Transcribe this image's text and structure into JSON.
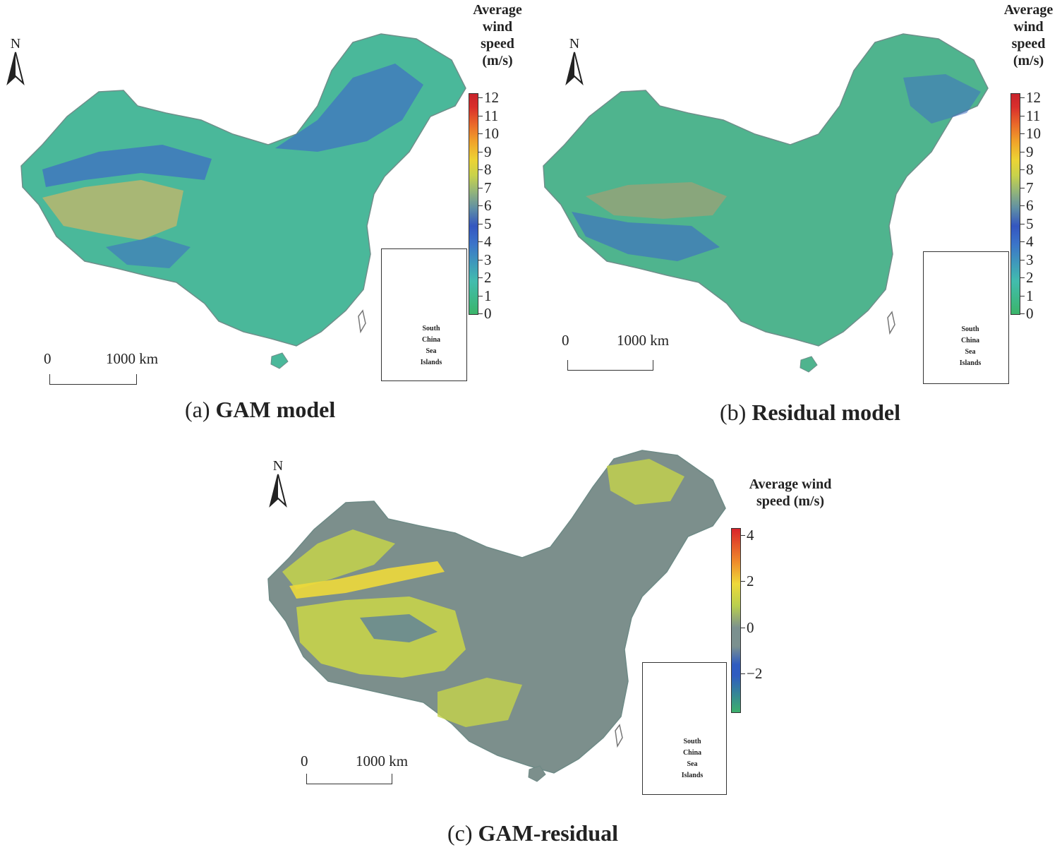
{
  "north_label": "N",
  "panels": [
    {
      "legend_title": [
        "Average",
        "wind",
        "speed",
        "(m/s)"
      ],
      "ticks": [
        "12",
        "11",
        "10",
        "9",
        "8",
        "7",
        "6",
        "5",
        "4",
        "3",
        "2",
        "1",
        "0"
      ],
      "tick_values": [
        12,
        11,
        10,
        9,
        8,
        7,
        6,
        5,
        4,
        3,
        2,
        1,
        0
      ],
      "scale_start": "0",
      "scale_end": "1000 km",
      "inset_label": [
        "South",
        "China",
        "Sea",
        "Islands"
      ],
      "caption_prefix": "(a)",
      "caption_name": "GAM model"
    },
    {
      "legend_title": [
        "Average",
        "wind",
        "speed",
        "(m/s)"
      ],
      "ticks": [
        "12",
        "11",
        "10",
        "9",
        "8",
        "7",
        "6",
        "5",
        "4",
        "3",
        "2",
        "1",
        "0"
      ],
      "tick_values": [
        12,
        11,
        10,
        9,
        8,
        7,
        6,
        5,
        4,
        3,
        2,
        1,
        0
      ],
      "scale_start": "0",
      "scale_end": "1000 km",
      "inset_label": [
        "South",
        "China",
        "Sea",
        "Islands"
      ],
      "caption_prefix": "(b)",
      "caption_name": "Residual model"
    },
    {
      "legend_title": [
        "Average wind",
        "speed (m/s)"
      ],
      "ticks": [
        "4",
        "2",
        "0",
        "−2"
      ],
      "tick_values": [
        4,
        2,
        0,
        -2
      ],
      "scale_start": "0",
      "scale_end": "1000 km",
      "inset_label": [
        "South",
        "China",
        "Sea",
        "Islands"
      ],
      "caption_prefix": "(c)",
      "caption_name": "GAM-residual"
    }
  ],
  "colors": {
    "scale_a": [
      "#3bb56a",
      "#3fb98f",
      "#42bcae",
      "#3b73c9",
      "#3456c0",
      "#5f8fa5",
      "#8fb27d",
      "#c8d24b",
      "#ecd335",
      "#f0a52a",
      "#ea6a2a",
      "#d92f2c",
      "#c8232b"
    ],
    "scale_c": [
      "#d9242a",
      "#ef8b2b",
      "#eed93a",
      "#b9cf4e",
      "#7b908f",
      "#2f5cc0",
      "#3cb06c"
    ],
    "map_a": "#4ab89a",
    "map_b": "#4fb48e",
    "map_c": "#7c8f8c",
    "map_c_yellow": "#c6d34a",
    "map_blue": "#3f6fc3",
    "map_tan": "#b9b66f"
  }
}
